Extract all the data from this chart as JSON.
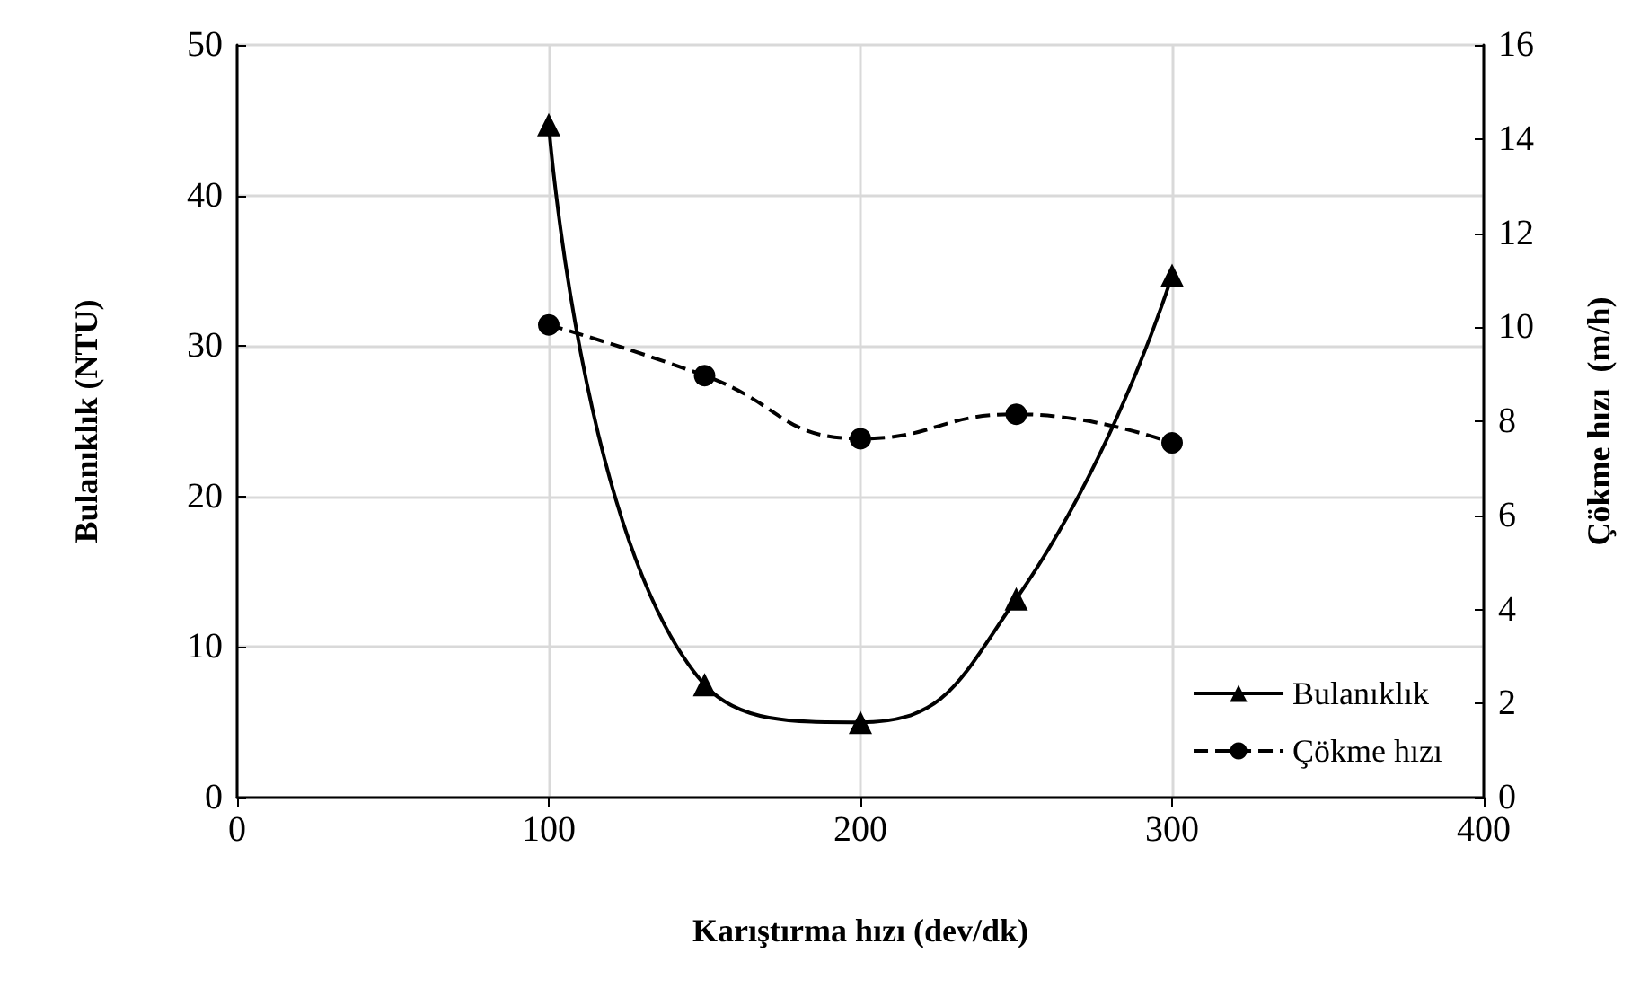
{
  "chart_data": {
    "type": "line",
    "xlabel": "Karıştırma hızı (dev/dk)",
    "ylabel": "Bulanıklık (NTU)",
    "y2label": "Çökme hızı  (m/h)",
    "x": [
      100,
      150,
      200,
      250,
      300
    ],
    "series": [
      {
        "name": "Bulanıklık",
        "color": "#000000",
        "values": [
          44.7,
          7.5,
          5.0,
          13.2,
          34.7
        ],
        "marker": "triangle",
        "line_style": "solid"
      },
      {
        "name": "Çökme hızı",
        "color": "#000000",
        "values": [
          10.05,
          8.97,
          7.63,
          8.15,
          7.54
        ],
        "marker": "circle",
        "line_style": "dashed",
        "axis": "y2"
      }
    ],
    "xlim": [
      0,
      400
    ],
    "xticks": [
      0,
      100,
      200,
      300,
      400
    ],
    "ylim": [
      0,
      50
    ],
    "yticks": [
      0,
      10,
      20,
      30,
      40,
      50
    ],
    "y2lim": [
      0,
      16
    ],
    "y2ticks": [
      0,
      2,
      4,
      6,
      8,
      10,
      12,
      14,
      16
    ],
    "grid": true,
    "legend": "bottom right"
  }
}
